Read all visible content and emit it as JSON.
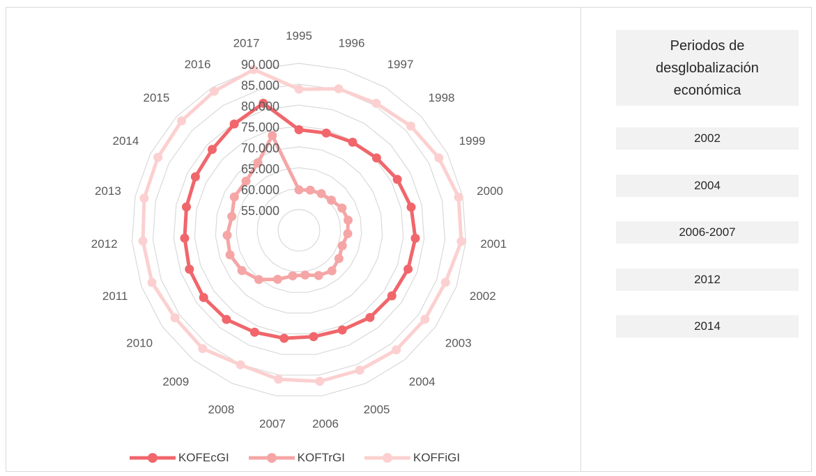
{
  "chart_data": {
    "type": "radar",
    "categories": [
      "1995",
      "1996",
      "1997",
      "1998",
      "1999",
      "2000",
      "2001",
      "2002",
      "2003",
      "2004",
      "2005",
      "2006",
      "2007",
      "2008",
      "2009",
      "2010",
      "2011",
      "2012",
      "2013",
      "2014",
      "2015",
      "2016",
      "2017"
    ],
    "radial_ticks": [
      "55.000",
      "60.000",
      "65.000",
      "70.000",
      "75.000",
      "80.000",
      "85.000",
      "90.000"
    ],
    "rlim": [
      50,
      90
    ],
    "series": [
      {
        "name": "KOFEcGI",
        "color": "#f0666b",
        "values": [
          74.1,
          74.2,
          74.7,
          75.4,
          76.5,
          77.4,
          77.9,
          77.7,
          77.2,
          76.9,
          76.0,
          75.7,
          76.1,
          76.6,
          77.5,
          77.9,
          77.8,
          77.4,
          77.5,
          77.9,
          78.4,
          79.8,
          81.6
        ]
      },
      {
        "name": "KOFTrGI",
        "color": "#f5a5a5",
        "values": [
          59.7,
          60.0,
          60.3,
          60.6,
          61.6,
          62.0,
          61.7,
          61.0,
          61.7,
          62.5,
          61.8,
          60.8,
          61.0,
          62.8,
          65.2,
          66.7,
          67.5,
          67.2,
          66.4,
          67.4,
          67.3,
          68.9,
          73.6
        ]
      },
      {
        "name": "KOFFiGI",
        "color": "#fcd0d0",
        "values": [
          83.8,
          85.2,
          85.6,
          86.6,
          87.7,
          89.0,
          88.9,
          87.2,
          86.9,
          86.9,
          86.5,
          86.5,
          86.0,
          85.1,
          86.5,
          86.3,
          87.3,
          87.4,
          87.8,
          88.0,
          88.4,
          89.0,
          90.0
        ]
      }
    ],
    "legend_position": "bottom",
    "grid": true
  },
  "panel": {
    "title": "Periodos de desglobalización económica",
    "periods": [
      "2002",
      "2004",
      "2006-2007",
      "2012",
      "2014"
    ]
  }
}
